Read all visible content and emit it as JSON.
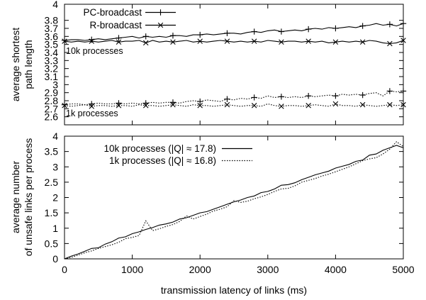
{
  "chart_data": [
    {
      "type": "line",
      "ylabel": [
        "average shortest",
        "path length"
      ],
      "xlim": [
        0,
        5000
      ],
      "ylim": [
        2.5,
        4
      ],
      "yticks": [
        "2.6",
        "2.7",
        "2.8",
        "2.9",
        "3",
        "3.1",
        "3.2",
        "3.3",
        "3.4",
        "3.5",
        "3.6",
        "3.7",
        "3.8",
        "4"
      ],
      "ytick_values": [
        2.6,
        2.7,
        2.8,
        2.9,
        3.0,
        3.1,
        3.2,
        3.3,
        3.4,
        3.5,
        3.6,
        3.7,
        3.8,
        4.0
      ],
      "legend_position": "top-left",
      "annotations": [
        "10k processes",
        "1k processes"
      ],
      "series": [
        {
          "name": "PC-broadcast",
          "marker": "plus",
          "style": "solid",
          "group": "10k processes",
          "x": [
            0,
            100,
            200,
            300,
            400,
            500,
            600,
            700,
            800,
            900,
            1000,
            1100,
            1200,
            1300,
            1400,
            1500,
            1600,
            1700,
            1800,
            1900,
            2000,
            2100,
            2200,
            2300,
            2400,
            2500,
            2600,
            2700,
            2800,
            2900,
            3000,
            3100,
            3200,
            3300,
            3400,
            3500,
            3600,
            3700,
            3800,
            3900,
            4000,
            4100,
            4200,
            4300,
            4400,
            4500,
            4600,
            4700,
            4800,
            4900,
            5000
          ],
          "y": [
            3.55,
            3.56,
            3.56,
            3.55,
            3.56,
            3.57,
            3.56,
            3.57,
            3.58,
            3.59,
            3.6,
            3.58,
            3.6,
            3.59,
            3.6,
            3.59,
            3.61,
            3.61,
            3.6,
            3.62,
            3.62,
            3.63,
            3.62,
            3.63,
            3.64,
            3.64,
            3.63,
            3.65,
            3.66,
            3.65,
            3.67,
            3.68,
            3.66,
            3.67,
            3.68,
            3.67,
            3.69,
            3.7,
            3.69,
            3.71,
            3.7,
            3.71,
            3.72,
            3.71,
            3.73,
            3.74,
            3.76,
            3.74,
            3.75,
            3.73,
            3.76
          ]
        },
        {
          "name": "R-broadcast",
          "marker": "cross",
          "style": "solid",
          "group": "10k processes",
          "x": [
            0,
            100,
            200,
            300,
            400,
            500,
            600,
            700,
            800,
            900,
            1000,
            1100,
            1200,
            1300,
            1400,
            1500,
            1600,
            1700,
            1800,
            1900,
            2000,
            2100,
            2200,
            2300,
            2400,
            2500,
            2600,
            2700,
            2800,
            2900,
            3000,
            3100,
            3200,
            3300,
            3400,
            3500,
            3600,
            3700,
            3800,
            3900,
            4000,
            4100,
            4200,
            4300,
            4400,
            4500,
            4600,
            4700,
            4800,
            4900,
            5000
          ],
          "y": [
            3.54,
            3.53,
            3.54,
            3.53,
            3.54,
            3.53,
            3.54,
            3.55,
            3.53,
            3.54,
            3.54,
            3.55,
            3.52,
            3.55,
            3.53,
            3.54,
            3.53,
            3.54,
            3.55,
            3.53,
            3.54,
            3.53,
            3.54,
            3.55,
            3.54,
            3.53,
            3.54,
            3.53,
            3.54,
            3.53,
            3.55,
            3.54,
            3.53,
            3.54,
            3.54,
            3.53,
            3.54,
            3.53,
            3.54,
            3.52,
            3.53,
            3.54,
            3.53,
            3.54,
            3.53,
            3.55,
            3.54,
            3.52,
            3.51,
            3.52,
            3.55
          ]
        },
        {
          "name": "PC-broadcast",
          "marker": "plus",
          "style": "dotted",
          "group": "1k processes",
          "x": [
            0,
            100,
            200,
            300,
            400,
            500,
            600,
            700,
            800,
            900,
            1000,
            1100,
            1200,
            1300,
            1400,
            1500,
            1600,
            1700,
            1800,
            1900,
            2000,
            2100,
            2200,
            2300,
            2400,
            2500,
            2600,
            2700,
            2800,
            2900,
            3000,
            3100,
            3200,
            3300,
            3400,
            3500,
            3600,
            3700,
            3800,
            3900,
            4000,
            4100,
            4200,
            4300,
            4400,
            4500,
            4600,
            4700,
            4800,
            4900,
            5000
          ],
          "y": [
            2.75,
            2.76,
            2.76,
            2.75,
            2.76,
            2.77,
            2.76,
            2.76,
            2.77,
            2.76,
            2.77,
            2.76,
            2.77,
            2.78,
            2.77,
            2.78,
            2.78,
            2.77,
            2.79,
            2.8,
            2.79,
            2.81,
            2.8,
            2.79,
            2.82,
            2.81,
            2.83,
            2.82,
            2.84,
            2.83,
            2.86,
            2.84,
            2.85,
            2.84,
            2.85,
            2.84,
            2.86,
            2.85,
            2.86,
            2.87,
            2.86,
            2.88,
            2.87,
            2.88,
            2.87,
            2.89,
            2.9,
            2.86,
            2.92,
            2.91,
            2.92
          ]
        },
        {
          "name": "R-broadcast",
          "marker": "cross",
          "style": "dotted",
          "group": "1k processes",
          "x": [
            0,
            100,
            200,
            300,
            400,
            500,
            600,
            700,
            800,
            900,
            1000,
            1100,
            1200,
            1300,
            1400,
            1500,
            1600,
            1700,
            1800,
            1900,
            2000,
            2100,
            2200,
            2300,
            2400,
            2500,
            2600,
            2700,
            2800,
            2900,
            3000,
            3100,
            3200,
            3300,
            3400,
            3500,
            3600,
            3700,
            3800,
            3900,
            4000,
            4100,
            4200,
            4300,
            4400,
            4500,
            4600,
            4700,
            4800,
            4900,
            5000
          ],
          "y": [
            2.74,
            2.73,
            2.74,
            2.75,
            2.73,
            2.74,
            2.74,
            2.73,
            2.74,
            2.74,
            2.73,
            2.75,
            2.74,
            2.74,
            2.73,
            2.74,
            2.75,
            2.74,
            2.73,
            2.75,
            2.74,
            2.74,
            2.73,
            2.74,
            2.75,
            2.74,
            2.73,
            2.74,
            2.74,
            2.73,
            2.76,
            2.74,
            2.73,
            2.74,
            2.74,
            2.73,
            2.74,
            2.75,
            2.74,
            2.73,
            2.76,
            2.74,
            2.74,
            2.73,
            2.75,
            2.74,
            2.73,
            2.74,
            2.75,
            2.74,
            2.75
          ]
        }
      ]
    },
    {
      "type": "line",
      "xlabel": "transmission latency of links (ms)",
      "ylabel": [
        "average number",
        "of unsafe links per process"
      ],
      "xlim": [
        0,
        5000
      ],
      "ylim": [
        0,
        4
      ],
      "xticks": [
        "0",
        "1000",
        "2000",
        "3000",
        "4000",
        "5000"
      ],
      "xtick_values": [
        0,
        1000,
        2000,
        3000,
        4000,
        5000
      ],
      "yticks": [
        "0",
        "0.5",
        "1",
        "1.5",
        "2",
        "2.5",
        "3",
        "3.5",
        "4"
      ],
      "ytick_values": [
        0,
        0.5,
        1,
        1.5,
        2,
        2.5,
        3,
        3.5,
        4
      ],
      "legend_position": "top-left",
      "series": [
        {
          "name": "10k processes (|Q| ≈ 17.8)",
          "style": "solid",
          "x": [
            0,
            100,
            200,
            300,
            400,
            500,
            600,
            700,
            800,
            900,
            1000,
            1100,
            1200,
            1300,
            1400,
            1500,
            1600,
            1700,
            1800,
            1900,
            2000,
            2100,
            2200,
            2300,
            2400,
            2500,
            2600,
            2700,
            2800,
            2900,
            3000,
            3100,
            3200,
            3300,
            3400,
            3500,
            3600,
            3700,
            3800,
            3900,
            4000,
            4100,
            4200,
            4300,
            4400,
            4500,
            4600,
            4700,
            4800,
            4900,
            5000
          ],
          "y": [
            0,
            0.09,
            0.16,
            0.25,
            0.34,
            0.36,
            0.48,
            0.56,
            0.68,
            0.72,
            0.82,
            0.88,
            0.96,
            1.02,
            1.1,
            1.14,
            1.2,
            1.3,
            1.34,
            1.42,
            1.5,
            1.54,
            1.62,
            1.7,
            1.78,
            1.86,
            1.92,
            2.0,
            2.05,
            2.16,
            2.2,
            2.28,
            2.4,
            2.42,
            2.48,
            2.58,
            2.66,
            2.74,
            2.8,
            2.86,
            2.96,
            3.02,
            3.08,
            3.18,
            3.22,
            3.38,
            3.42,
            3.54,
            3.62,
            3.7,
            3.62
          ]
        },
        {
          "name": "1k processes (|Q| ≈ 16.8)",
          "style": "dotted",
          "x": [
            0,
            100,
            200,
            300,
            400,
            500,
            600,
            700,
            800,
            900,
            1000,
            1100,
            1200,
            1300,
            1400,
            1500,
            1600,
            1700,
            1800,
            1900,
            2000,
            2100,
            2200,
            2300,
            2400,
            2500,
            2600,
            2700,
            2800,
            2900,
            3000,
            3100,
            3200,
            3300,
            3400,
            3500,
            3600,
            3700,
            3800,
            3900,
            4000,
            4100,
            4200,
            4300,
            4400,
            4500,
            4600,
            4700,
            4800,
            4900,
            5000
          ],
          "y": [
            0,
            0.05,
            0.12,
            0.2,
            0.26,
            0.34,
            0.4,
            0.46,
            0.54,
            0.66,
            0.7,
            0.76,
            1.24,
            0.92,
            0.98,
            1.06,
            1.12,
            1.22,
            1.4,
            1.3,
            1.38,
            1.46,
            1.56,
            1.62,
            1.7,
            1.9,
            1.84,
            1.88,
            1.96,
            2.02,
            2.1,
            2.2,
            2.28,
            2.3,
            2.38,
            2.5,
            2.56,
            2.62,
            2.7,
            2.76,
            2.84,
            2.92,
            3.0,
            3.1,
            3.2,
            3.26,
            3.3,
            3.42,
            3.58,
            3.82,
            3.66
          ]
        }
      ]
    }
  ]
}
